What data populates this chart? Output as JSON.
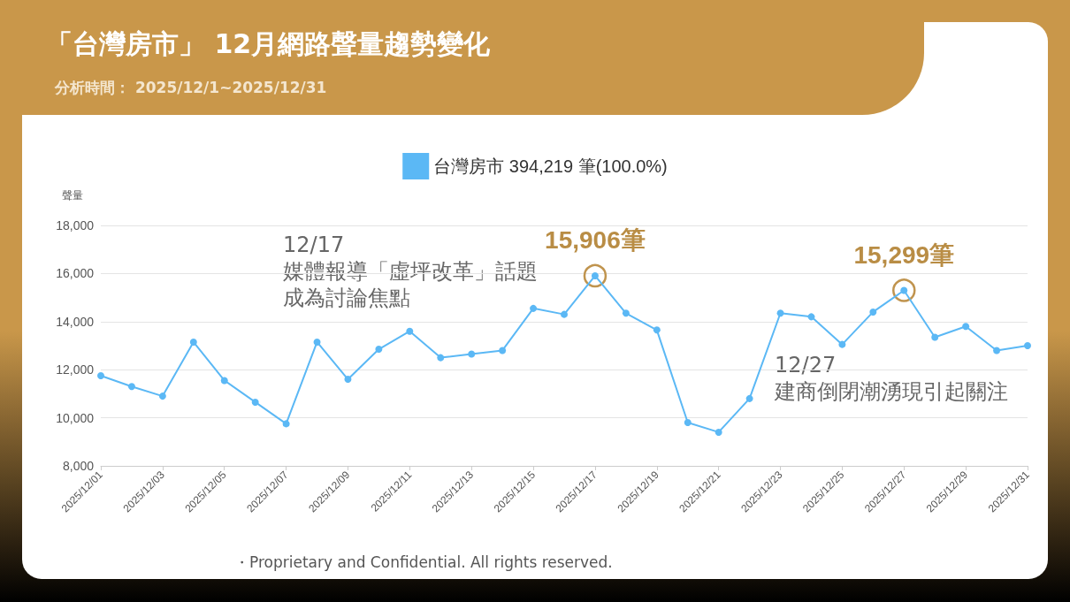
{
  "chart_data": {
    "type": "line",
    "title": "「台灣房市」 12月網路聲量趨勢變化",
    "subtitle": "分析時間： 2025/12/1~2025/12/31",
    "ylabel": "聲量",
    "categories": [
      "2025/12/01",
      null,
      "2025/12/03",
      null,
      "2025/12/05",
      null,
      "2025/12/07",
      null,
      "2025/12/09",
      null,
      "2025/12/11",
      null,
      "2025/12/13",
      null,
      "2025/12/15",
      null,
      "2025/12/17",
      null,
      "2025/12/19",
      null,
      "2025/12/21",
      null,
      "2025/12/23",
      null,
      "2025/12/25",
      null,
      "2025/12/27",
      null,
      "2025/12/29",
      null,
      "2025/12/31"
    ],
    "series": [
      {
        "name": "台灣房市 394,219 筆(100.0%)",
        "color": "#5bb8f5",
        "values": [
          11750,
          11300,
          10900,
          13150,
          11550,
          10650,
          9750,
          13150,
          11600,
          12850,
          13600,
          12500,
          12650,
          12800,
          14550,
          14300,
          15906,
          14350,
          13650,
          9800,
          9400,
          10800,
          14350,
          14200,
          13050,
          14400,
          15299,
          13350,
          13800,
          12800,
          13000
        ],
        "value_labels": [
          null,
          null,
          null,
          null,
          null,
          null,
          null,
          null,
          null,
          null,
          null,
          null,
          null,
          null,
          null,
          null,
          "15,906筆",
          null,
          null,
          null,
          null,
          null,
          null,
          null,
          null,
          null,
          "15,299筆",
          null,
          null,
          null,
          null
        ]
      }
    ],
    "ylim": [
      8000,
      18000
    ],
    "yticks": [
      {
        "value": 8000,
        "label": "8,000"
      },
      {
        "value": 10000,
        "label": "10,000"
      },
      {
        "value": 12000,
        "label": "12,000"
      },
      {
        "value": 14000,
        "label": "14,000"
      },
      {
        "value": 16000,
        "label": "16,000"
      },
      {
        "value": 18000,
        "label": "18,000"
      }
    ],
    "grid": "y",
    "legend": "top",
    "marker": "circle",
    "line_style": "solid",
    "annotations": [
      "12/17",
      "媒體報導「虛坪改革」話題成為討論焦點",
      "12/27",
      "建商倒閉潮湧現引起關注",
      "・Proprietary and Confidential. All rights reserved."
    ]
  }
}
